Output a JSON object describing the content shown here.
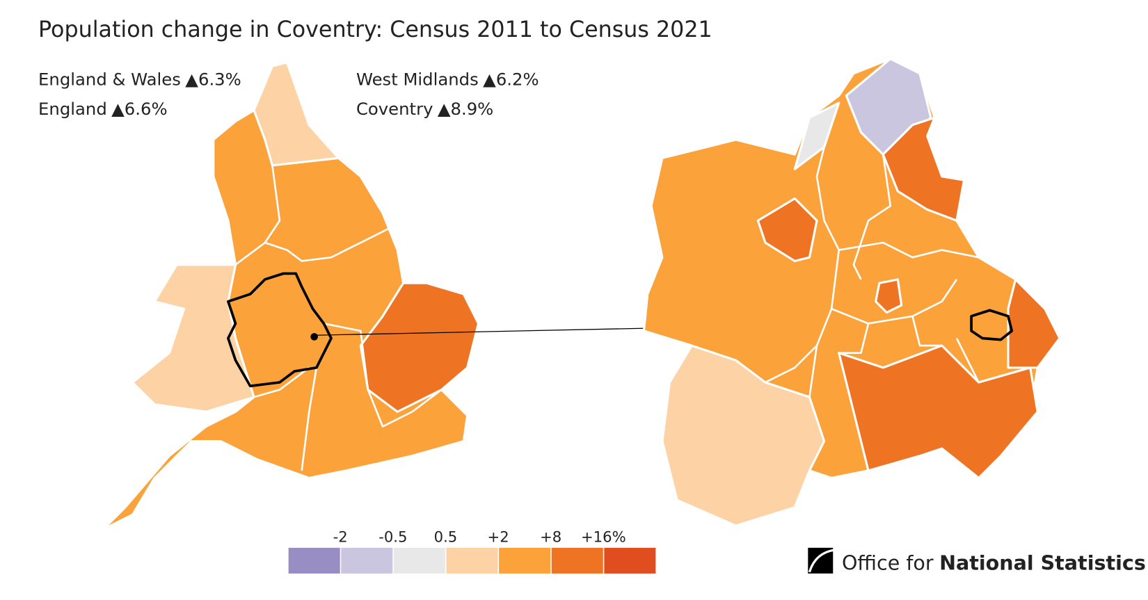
{
  "header": {
    "title": "Population change in Coventry: Census 2011 to Census 2021"
  },
  "stats": [
    {
      "name": "England & Wales",
      "change": "▲6.3%"
    },
    {
      "name": "England",
      "change": "▲6.6%"
    },
    {
      "name": "West Midlands",
      "change": "▲6.2%"
    },
    {
      "name": "Coventry",
      "change": "▲8.9%"
    }
  ],
  "legend": {
    "colors": [
      "#998ec3",
      "#cbc6e0",
      "#e8e8e8",
      "#fdd3a6",
      "#fba23b",
      "#ee7424",
      "#e04e1f"
    ],
    "breaks": [
      "-2",
      "-0.5",
      "0.5",
      "+2",
      "+8",
      "+16%"
    ]
  },
  "logo": {
    "light": "Office for",
    "bold": "National Statistics"
  }
}
